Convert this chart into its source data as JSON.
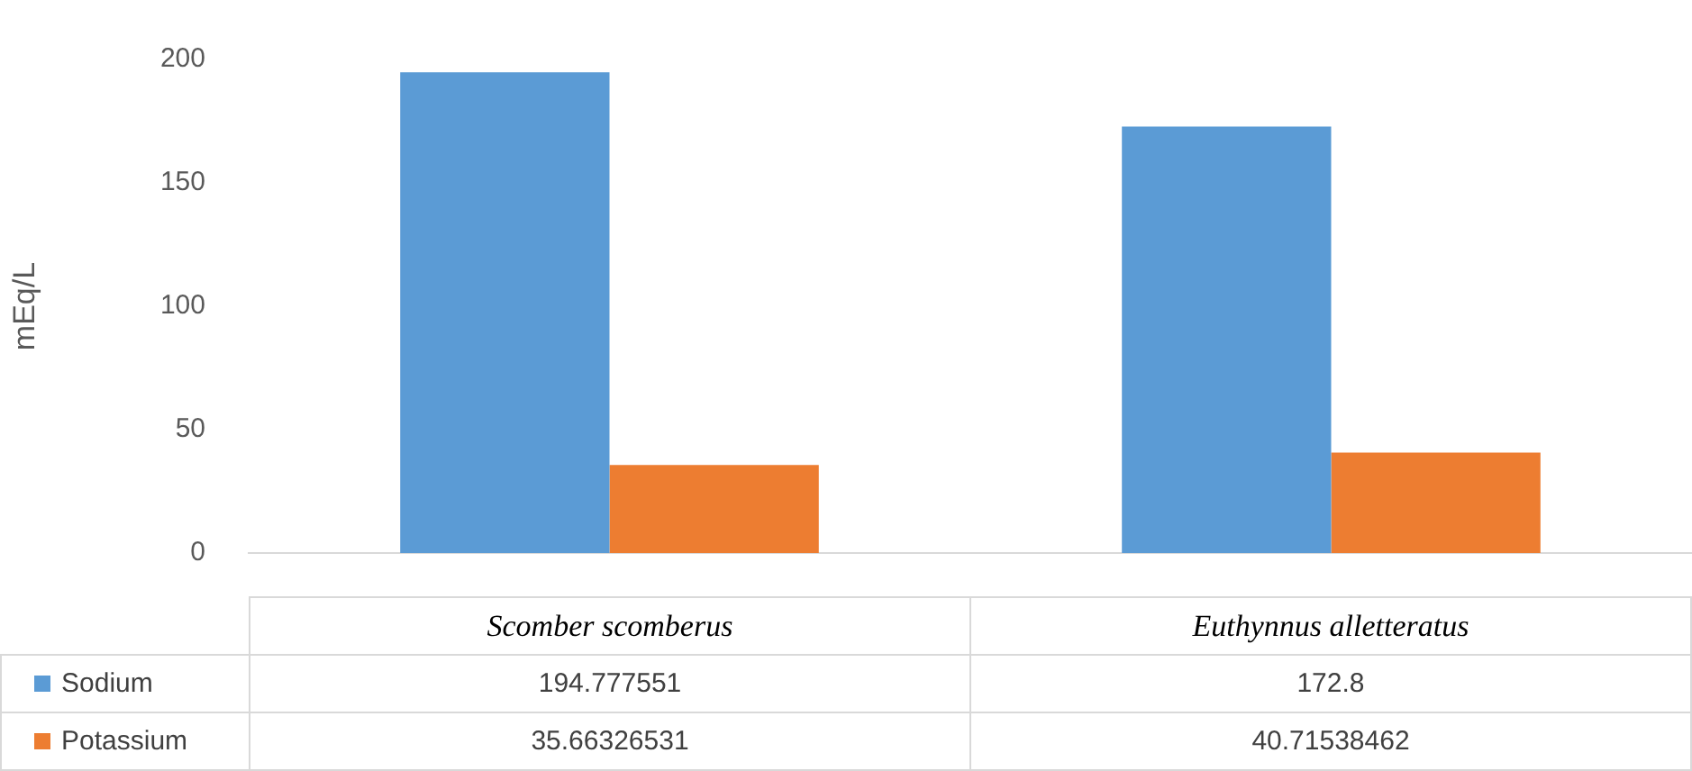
{
  "chart_data": {
    "type": "bar",
    "ylabel": "mEq/L",
    "categories": [
      "Scomber scomberus",
      "Euthynnus alletteratus"
    ],
    "series": [
      {
        "name": "Sodium",
        "color": "#5b9bd5",
        "values": [
          194.777551,
          172.8
        ]
      },
      {
        "name": "Potassium",
        "color": "#ed7d31",
        "values": [
          35.66326531,
          40.71538462
        ]
      }
    ],
    "ylim": [
      0,
      200
    ],
    "yticks": [
      0,
      50,
      100,
      150,
      200
    ],
    "grid": false,
    "legend": "bottom",
    "data_labels": true
  }
}
